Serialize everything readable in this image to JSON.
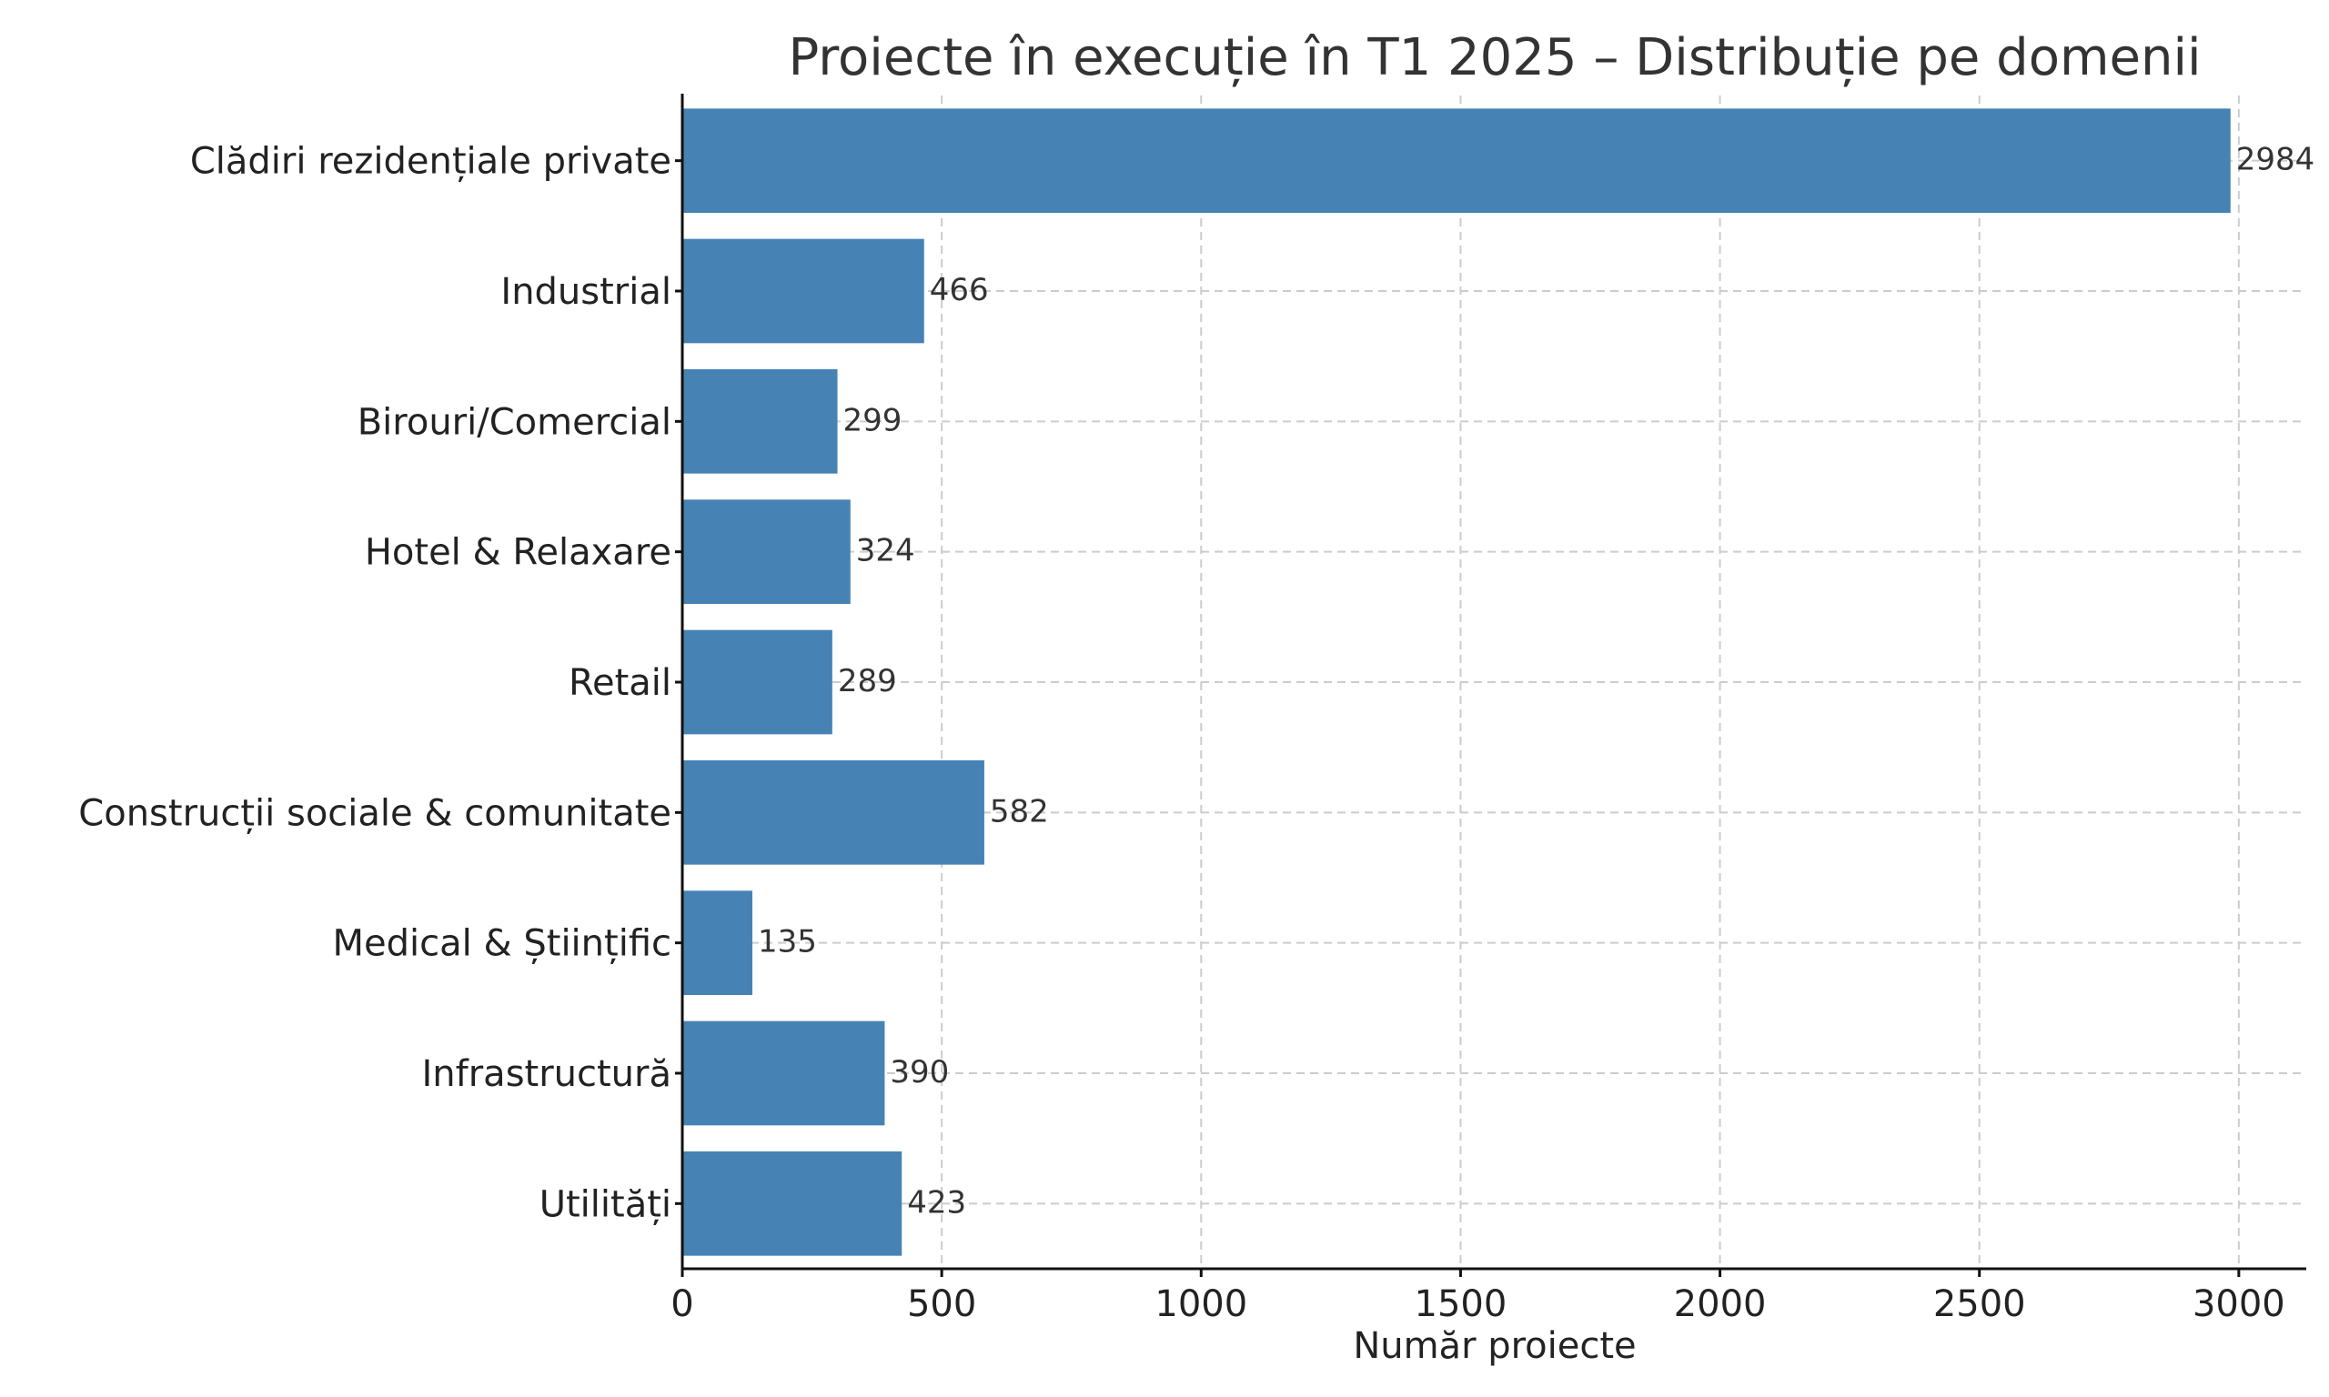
{
  "chart_data": {
    "type": "bar",
    "orientation": "horizontal",
    "title": "Proiecte în execuție în T1 2025 – Distribuție pe domenii",
    "xlabel": "Număr proiecte",
    "ylabel": "",
    "categories": [
      "Clădiri rezidențiale private",
      "Industrial",
      "Birouri/Comercial",
      "Hotel & Relaxare",
      "Retail",
      "Construcții sociale & comunitate",
      "Medical & Științific",
      "Infrastructură",
      "Utilități"
    ],
    "values": [
      2984,
      466,
      299,
      324,
      289,
      582,
      135,
      390,
      423
    ],
    "xlim": [
      0,
      3130
    ],
    "xticks": [
      0,
      500,
      1000,
      1500,
      2000,
      2500,
      3000
    ],
    "grid": true,
    "bar_color": "#4682b4",
    "legend": "none"
  }
}
